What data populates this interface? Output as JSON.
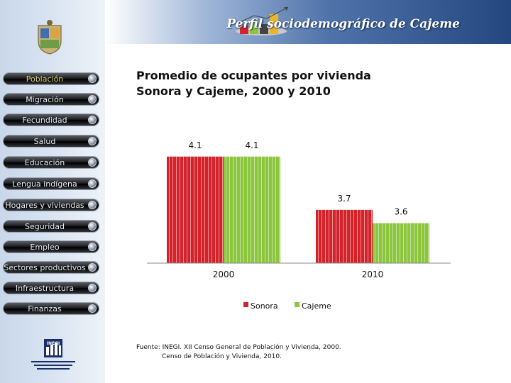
{
  "header": {
    "title": "Perfil sociodemográfico de Cajeme"
  },
  "sidebar": {
    "items": [
      {
        "label": "Población",
        "active": true
      },
      {
        "label": "Migración",
        "active": false
      },
      {
        "label": "Fecundidad",
        "active": false
      },
      {
        "label": "Salud",
        "active": false
      },
      {
        "label": "Educación",
        "active": false
      },
      {
        "label": "Lengua indígena",
        "active": false
      },
      {
        "label": "Hogares y viviendas",
        "active": false
      },
      {
        "label": "Seguridad",
        "active": false
      },
      {
        "label": "Empleo",
        "active": false
      },
      {
        "label": "Sectores productivos",
        "active": false
      },
      {
        "label": "Infraestructura",
        "active": false
      },
      {
        "label": "Finanzas",
        "active": false
      }
    ],
    "logo_text": "INEGI"
  },
  "chart": {
    "title_line1": "Promedio de ocupantes por vivienda",
    "title_line2": "Sonora y Cajeme, 2000 y 2010"
  },
  "chart_data": {
    "type": "bar",
    "categories": [
      "2000",
      "2010"
    ],
    "series": [
      {
        "name": "Sonora",
        "values": [
          4.1,
          3.7
        ],
        "labels": [
          "4.1",
          "3.7"
        ],
        "color": "#d3222a"
      },
      {
        "name": "Cajeme",
        "values": [
          4.1,
          3.6
        ],
        "labels": [
          "4.1",
          "3.6"
        ],
        "color": "#8cc63f"
      }
    ],
    "ylim": [
      3.3,
      4.12
    ],
    "grid": false,
    "legend": "bottom"
  },
  "source": {
    "line1": "Fuente: INEGI. XII Censo General de Población y Vivienda, 2000.",
    "line2": "Censo de Población y Vivienda, 2010."
  }
}
